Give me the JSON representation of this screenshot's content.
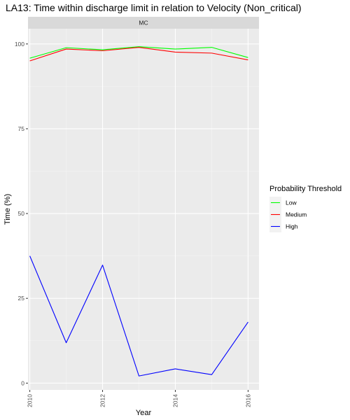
{
  "chart_data": {
    "type": "line",
    "title": "LA13: Time within discharge limit in relation to Velocity (Non_critical)",
    "facet_label": "MC",
    "xlabel": "Year",
    "ylabel": "Time (%)",
    "x": [
      2010,
      2011,
      2012,
      2013,
      2014,
      2015,
      2016
    ],
    "x_ticks": [
      "2010",
      "2012",
      "2014",
      "2016"
    ],
    "y_ticks": [
      "0",
      "25",
      "50",
      "75",
      "100"
    ],
    "xlim": [
      2009.95,
      2016.3
    ],
    "ylim": [
      -2,
      104.5
    ],
    "grid": true,
    "legend": {
      "title": "Probability Threshold",
      "position": "right"
    },
    "series": [
      {
        "name": "Low",
        "color": "#00ff00",
        "values": [
          95.8,
          98.9,
          98.3,
          99.2,
          98.5,
          99.0,
          96.0
        ]
      },
      {
        "name": "Medium",
        "color": "#ff0000",
        "values": [
          95.0,
          98.5,
          98.0,
          99.0,
          97.6,
          97.3,
          95.3
        ]
      },
      {
        "name": "High",
        "color": "#0000ff",
        "values": [
          37.5,
          11.9,
          34.8,
          2.1,
          4.2,
          2.5,
          18.0
        ]
      }
    ]
  }
}
